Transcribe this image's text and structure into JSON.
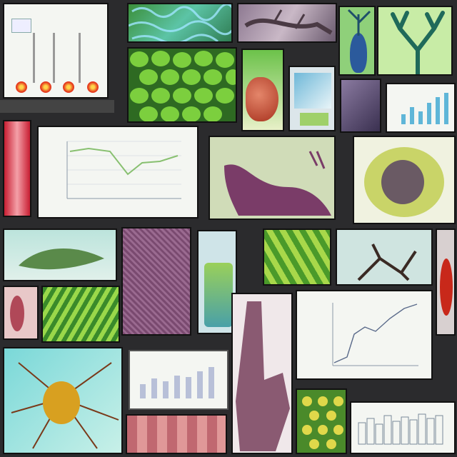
{
  "collage": {
    "tiles": [
      "chart-tile-bar-red",
      "cells-green-blue",
      "microscope-purple-branch",
      "blue-seedpod",
      "green-branching-tree",
      "green-cell-grid",
      "red-spiral-organ",
      "leaf-monitor",
      "purple-fiber",
      "bar-chart-blue",
      "red-tissue-strip",
      "line-chart-green",
      "purple-coral-branch",
      "cross-section-yellow",
      "aquarium-leaf",
      "purple-textured-column",
      "green-jar",
      "green-leaf-pattern",
      "dark-branch-specimen",
      "red-fragment",
      "pink-fragments",
      "green-leaf-stripes",
      "purple-hand-texture",
      "rising-line-chart",
      "orange-neuron",
      "bar-chart-monitor",
      "pink-tubes",
      "yellow-green-cells",
      "gray-histogram"
    ]
  }
}
